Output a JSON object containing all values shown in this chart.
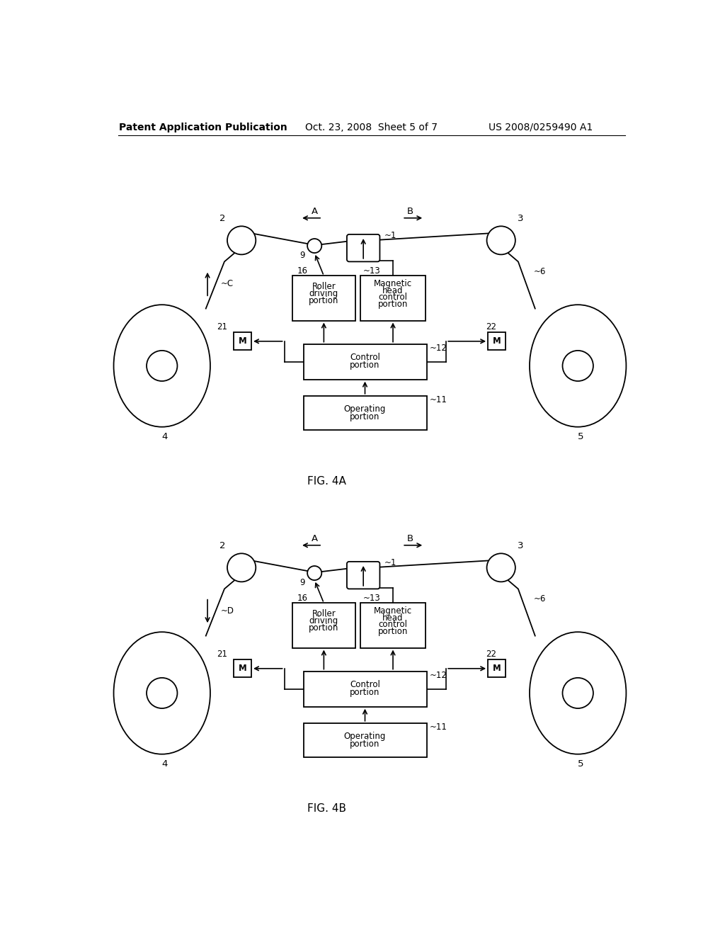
{
  "background_color": "#ffffff",
  "header_left": "Patent Application Publication",
  "header_center": "Oct. 23, 2008  Sheet 5 of 7",
  "header_right": "US 2008/0259490 A1",
  "fig4a_label": "FIG. 4A",
  "fig4b_label": "FIG. 4B",
  "header_fontsize": 10,
  "diagram_fontsize": 8.5,
  "fig_label_fontsize": 11
}
